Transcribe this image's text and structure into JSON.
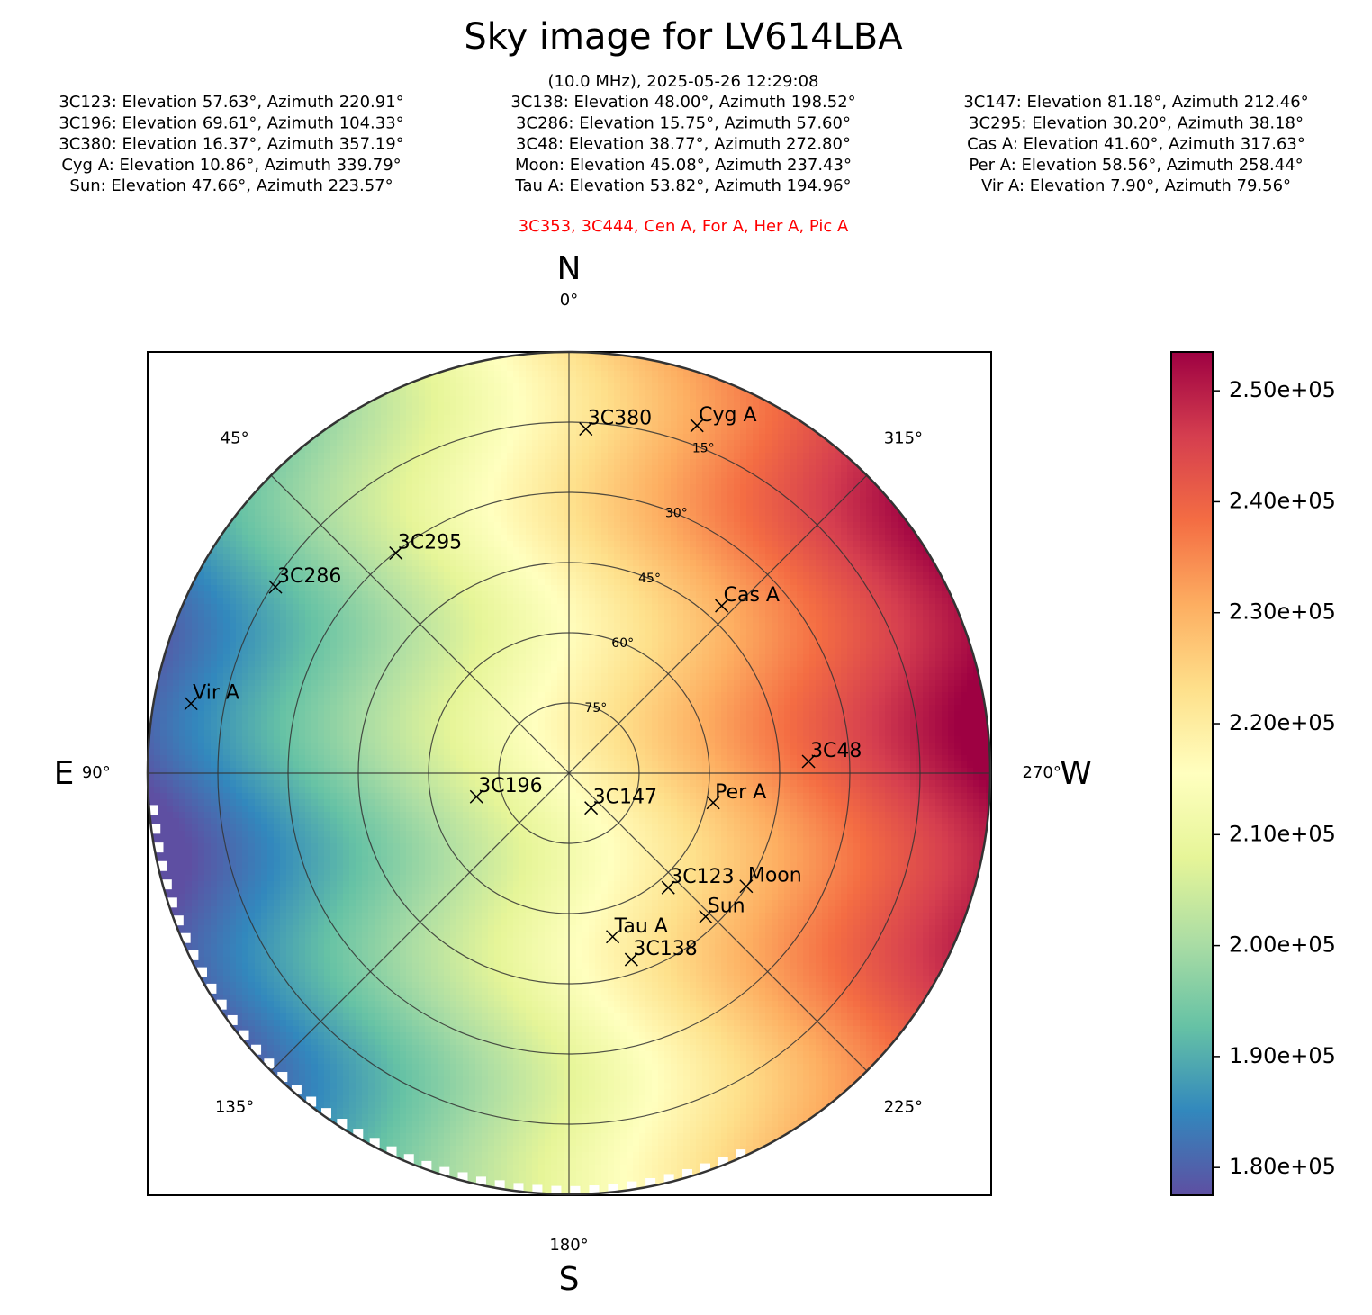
{
  "chart_data": {
    "type": "heatmap",
    "projection": "polar sky (azimuth/elevation), north up, east left",
    "title": "Sky image for LV614LBA",
    "subtitle": "(10.0 MHz), 2025-05-26 12:29:08",
    "source_lines": [
      [
        "3C123: Elevation 57.63°, Azimuth 220.91°",
        "3C138: Elevation 48.00°, Azimuth 198.52°",
        "3C147: Elevation 81.18°, Azimuth 212.46°"
      ],
      [
        "3C196: Elevation 69.61°, Azimuth 104.33°",
        "3C286: Elevation 15.75°, Azimuth 57.60°",
        "3C295: Elevation 30.20°, Azimuth 38.18°"
      ],
      [
        "3C380: Elevation 16.37°, Azimuth 357.19°",
        "3C48: Elevation 38.77°, Azimuth 272.80°",
        "Cas A: Elevation 41.60°, Azimuth 317.63°"
      ],
      [
        "Cyg A: Elevation 10.86°, Azimuth 339.79°",
        "Moon: Elevation 45.08°, Azimuth 237.43°",
        "Per A: Elevation 58.56°, Azimuth 258.44°"
      ],
      [
        "Sun: Elevation 47.66°, Azimuth 223.57°",
        "Tau A: Elevation 53.82°, Azimuth 194.96°",
        "Vir A: Elevation 7.90°, Azimuth 79.56°"
      ]
    ],
    "below_horizon": "3C353, 3C444, Cen A, For A, Her A, Pic A",
    "below_horizon_color": "#ff0000",
    "compass": {
      "N": "N",
      "S": "S",
      "E": "E",
      "W": "W"
    },
    "azimuth_ticks": [
      {
        "az": 0,
        "label": "0°"
      },
      {
        "az": 45,
        "label": "45°"
      },
      {
        "az": 90,
        "label": "90°"
      },
      {
        "az": 135,
        "label": "135°"
      },
      {
        "az": 180,
        "label": "180°"
      },
      {
        "az": 225,
        "label": "225°"
      },
      {
        "az": 270,
        "label": "270°"
      },
      {
        "az": 315,
        "label": "315°"
      }
    ],
    "elevation_rings": [
      {
        "el": 15,
        "label": "15°"
      },
      {
        "el": 30,
        "label": "30°"
      },
      {
        "el": 45,
        "label": "45°"
      },
      {
        "el": 60,
        "label": "60°"
      },
      {
        "el": 75,
        "label": "75°"
      }
    ],
    "sources": [
      {
        "name": "3C123",
        "el": 57.63,
        "az": 220.91
      },
      {
        "name": "3C138",
        "el": 48.0,
        "az": 198.52
      },
      {
        "name": "3C147",
        "el": 81.18,
        "az": 212.46
      },
      {
        "name": "3C196",
        "el": 69.61,
        "az": 104.33
      },
      {
        "name": "3C286",
        "el": 15.75,
        "az": 57.6
      },
      {
        "name": "3C295",
        "el": 30.2,
        "az": 38.18
      },
      {
        "name": "3C380",
        "el": 16.37,
        "az": 357.19
      },
      {
        "name": "3C48",
        "el": 38.77,
        "az": 272.8
      },
      {
        "name": "Cas A",
        "el": 41.6,
        "az": 317.63
      },
      {
        "name": "Cyg A",
        "el": 10.86,
        "az": 339.79
      },
      {
        "name": "Moon",
        "el": 45.08,
        "az": 237.43
      },
      {
        "name": "Per A",
        "el": 58.56,
        "az": 258.44
      },
      {
        "name": "Sun",
        "el": 47.66,
        "az": 223.57
      },
      {
        "name": "Tau A",
        "el": 53.82,
        "az": 194.96
      },
      {
        "name": "Vir A",
        "el": 7.9,
        "az": 79.56
      }
    ],
    "colorbar": {
      "colormap": "Spectral_r",
      "vmin": 177500,
      "vmax": 253500,
      "ticks": [
        {
          "value": 180000,
          "label": "1.80e+05"
        },
        {
          "value": 190000,
          "label": "1.90e+05"
        },
        {
          "value": 200000,
          "label": "2.00e+05"
        },
        {
          "value": 210000,
          "label": "2.10e+05"
        },
        {
          "value": 220000,
          "label": "2.20e+05"
        },
        {
          "value": 230000,
          "label": "2.30e+05"
        },
        {
          "value": 240000,
          "label": "2.40e+05"
        },
        {
          "value": 250000,
          "label": "2.50e+05"
        }
      ]
    }
  }
}
